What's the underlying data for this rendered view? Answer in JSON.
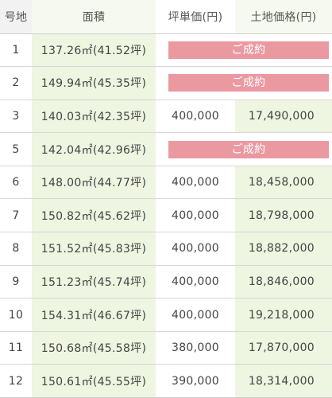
{
  "headers": {
    "lot": "号地",
    "area": "面積",
    "unit_price": "坪単価(円)",
    "land_price": "土地価格(円)"
  },
  "sold_label": "ご成約",
  "colors": {
    "area_bg": "#eef5e0",
    "sold_badge": "#eb99a1",
    "header_bg": "#f2f2f2"
  },
  "rows": [
    {
      "lot": "1",
      "area": "137.26㎡(41.52坪)",
      "status": "sold"
    },
    {
      "lot": "2",
      "area": "149.94㎡(45.35坪)",
      "status": "sold"
    },
    {
      "lot": "3",
      "area": "140.03㎡(42.35坪)",
      "unit_price": "400,000",
      "land_price": "17,490,000"
    },
    {
      "lot": "5",
      "area": "142.04㎡(42.96坪)",
      "status": "sold"
    },
    {
      "lot": "6",
      "area": "148.00㎡(44.77坪)",
      "unit_price": "400,000",
      "land_price": "18,458,000"
    },
    {
      "lot": "7",
      "area": "150.82㎡(45.62坪)",
      "unit_price": "400,000",
      "land_price": "18,798,000"
    },
    {
      "lot": "8",
      "area": "151.52㎡(45.83坪)",
      "unit_price": "400,000",
      "land_price": "18,882,000"
    },
    {
      "lot": "9",
      "area": "151.23㎡(45.74坪)",
      "unit_price": "400,000",
      "land_price": "18,846,000"
    },
    {
      "lot": "10",
      "area": "154.31㎡(46.67坪)",
      "unit_price": "400,000",
      "land_price": "19,218,000"
    },
    {
      "lot": "11",
      "area": "150.68㎡(45.58坪)",
      "unit_price": "380,000",
      "land_price": "17,870,000"
    },
    {
      "lot": "12",
      "area": "150.61㎡(45.55坪)",
      "unit_price": "390,000",
      "land_price": "18,314,000"
    }
  ]
}
